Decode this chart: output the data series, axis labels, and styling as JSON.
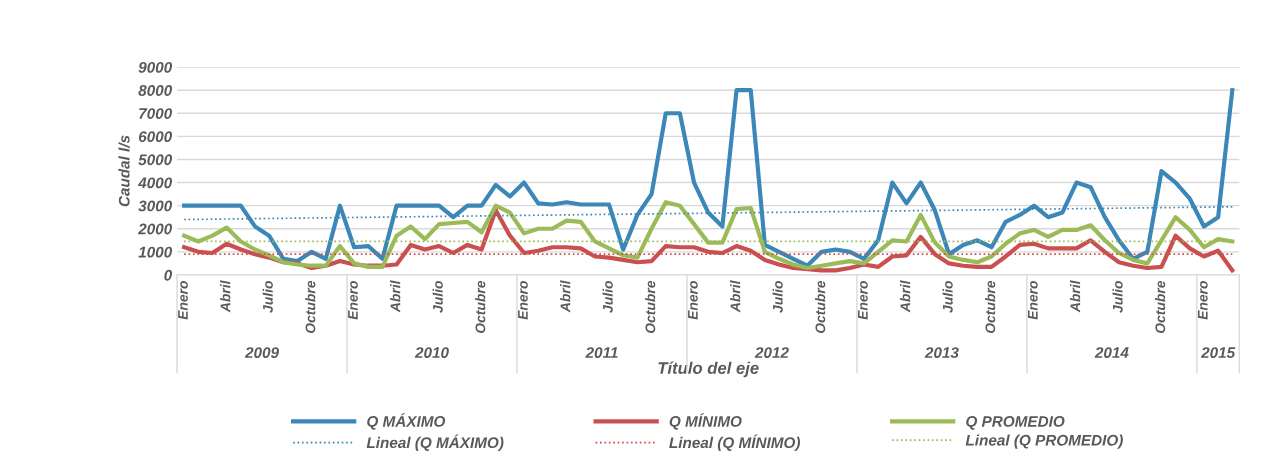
{
  "chart_data": {
    "type": "line",
    "xlabel": "Título del eje",
    "ylabel": "Caudal l/s",
    "categories": [
      "Enero",
      null,
      null,
      "Abril",
      null,
      null,
      "Julio",
      null,
      null,
      "Octubre",
      null,
      null,
      "Enero",
      null,
      null,
      "Abril",
      null,
      null,
      "Julio",
      null,
      null,
      "Octubre",
      null,
      null,
      "Enero",
      null,
      null,
      "Abril",
      null,
      null,
      "Julio",
      null,
      null,
      "Octubre",
      null,
      null,
      "Enero",
      null,
      null,
      "Abril",
      null,
      null,
      "Julio",
      null,
      null,
      "Octubre",
      null,
      null,
      "Enero",
      null,
      null,
      "Abril",
      null,
      null,
      "Julio",
      null,
      null,
      "Octubre",
      null,
      null,
      "Enero",
      null,
      null,
      "Abril",
      null,
      null,
      "Julio",
      null,
      null,
      "Octubre",
      null,
      null,
      "Enero",
      null,
      null
    ],
    "annotations": [
      "2009",
      "2010",
      "2011",
      "2012",
      "2013",
      "2014",
      "2015"
    ],
    "series": [
      {
        "name": "Q MÁXIMO",
        "color": "#3a87b8",
        "line_style": "solid",
        "values": [
          3000,
          3000,
          3000,
          3000,
          3000,
          2100,
          1700,
          700,
          600,
          1000,
          700,
          3000,
          1200,
          1250,
          700,
          3000,
          3000,
          3000,
          3000,
          2500,
          3000,
          3000,
          3900,
          3400,
          4000,
          3100,
          3050,
          3150,
          3050,
          3050,
          3050,
          1100,
          2600,
          3500,
          7000,
          7000,
          4000,
          2700,
          2100,
          8000,
          8000,
          1300,
          1000,
          700,
          400,
          1000,
          1100,
          1000,
          700,
          1500,
          4000,
          3100,
          4000,
          2800,
          900,
          1300,
          1500,
          1200,
          2300,
          2600,
          3000,
          2500,
          2700,
          4000,
          3800,
          2500,
          1500,
          700,
          1000,
          4500,
          4000,
          3300,
          2100,
          2500,
          8000
        ]
      },
      {
        "name": "Q MÍNIMO",
        "color": "#c9504f",
        "line_style": "solid",
        "values": [
          1200,
          1000,
          950,
          1350,
          1100,
          900,
          750,
          550,
          500,
          300,
          400,
          600,
          450,
          400,
          400,
          450,
          1300,
          1100,
          1250,
          950,
          1300,
          1100,
          2800,
          1700,
          950,
          1050,
          1200,
          1200,
          1150,
          800,
          750,
          650,
          550,
          600,
          1250,
          1200,
          1200,
          1000,
          950,
          1250,
          1050,
          650,
          450,
          300,
          250,
          200,
          200,
          300,
          450,
          350,
          800,
          850,
          1650,
          900,
          500,
          400,
          350,
          350,
          800,
          1300,
          1350,
          1150,
          1150,
          1150,
          1500,
          1000,
          550,
          400,
          300,
          350,
          1700,
          1150,
          800,
          1050,
          200
        ]
      },
      {
        "name": "Q PROMEDIO",
        "color": "#9bbb59",
        "line_style": "solid",
        "values": [
          1700,
          1450,
          1700,
          2050,
          1450,
          1100,
          850,
          550,
          450,
          400,
          400,
          1250,
          500,
          350,
          350,
          1700,
          2100,
          1550,
          2200,
          2250,
          2300,
          1850,
          3000,
          2700,
          1800,
          2000,
          2000,
          2350,
          2300,
          1450,
          1150,
          850,
          750,
          2000,
          3150,
          3000,
          2200,
          1400,
          1400,
          2850,
          2900,
          1000,
          700,
          450,
          300,
          400,
          500,
          600,
          500,
          1000,
          1500,
          1450,
          2600,
          1400,
          800,
          650,
          550,
          800,
          1350,
          1800,
          1950,
          1650,
          1950,
          1950,
          2150,
          1500,
          950,
          650,
          500,
          1500,
          2500,
          1950,
          1200,
          1550,
          1450
        ]
      },
      {
        "name": "Lineal (Q MÁXIMO)",
        "color": "#3a87b8",
        "line_style": "dotted",
        "values": [
          2400,
          null,
          null,
          null,
          null,
          null,
          null,
          null,
          null,
          null,
          null,
          null,
          null,
          null,
          null,
          null,
          null,
          null,
          null,
          null,
          null,
          null,
          null,
          null,
          null,
          null,
          null,
          null,
          null,
          null,
          null,
          null,
          null,
          null,
          null,
          null,
          null,
          null,
          null,
          null,
          null,
          null,
          null,
          null,
          null,
          null,
          null,
          null,
          null,
          null,
          null,
          null,
          null,
          null,
          null,
          null,
          null,
          null,
          null,
          null,
          null,
          null,
          null,
          null,
          null,
          null,
          null,
          null,
          null,
          null,
          null,
          null,
          null,
          null,
          2950
        ]
      },
      {
        "name": "Lineal (Q MÍNIMO)",
        "color": "#c9504f",
        "line_style": "dotted",
        "values": [
          900,
          null,
          null,
          null,
          null,
          null,
          null,
          null,
          null,
          null,
          null,
          null,
          null,
          null,
          null,
          null,
          null,
          null,
          null,
          null,
          null,
          null,
          null,
          null,
          null,
          null,
          null,
          null,
          null,
          null,
          null,
          null,
          null,
          null,
          null,
          null,
          null,
          null,
          null,
          null,
          null,
          null,
          null,
          null,
          null,
          null,
          null,
          null,
          null,
          null,
          null,
          null,
          null,
          null,
          null,
          null,
          null,
          null,
          null,
          null,
          null,
          null,
          null,
          null,
          null,
          null,
          null,
          null,
          null,
          null,
          null,
          null,
          null,
          null,
          900
        ]
      },
      {
        "name": "Lineal (Q PROMEDIO)",
        "color": "#9bbb59",
        "line_style": "dotted",
        "values": [
          1450,
          null,
          null,
          null,
          null,
          null,
          null,
          null,
          null,
          null,
          null,
          null,
          null,
          null,
          null,
          null,
          null,
          null,
          null,
          null,
          null,
          null,
          null,
          null,
          null,
          null,
          null,
          null,
          null,
          null,
          null,
          null,
          null,
          null,
          null,
          null,
          null,
          null,
          null,
          null,
          null,
          null,
          null,
          null,
          null,
          null,
          null,
          null,
          null,
          null,
          null,
          null,
          null,
          null,
          null,
          null,
          null,
          null,
          null,
          null,
          null,
          null,
          null,
          null,
          null,
          null,
          null,
          null,
          null,
          null,
          null,
          null,
          null,
          null,
          1450
        ]
      }
    ],
    "ylim": [
      0,
      9000
    ],
    "yticks": [
      0,
      1000,
      2000,
      3000,
      4000,
      5000,
      6000,
      7000,
      8000,
      9000
    ],
    "grid": "y",
    "legend": "bottom",
    "marker": "none"
  }
}
